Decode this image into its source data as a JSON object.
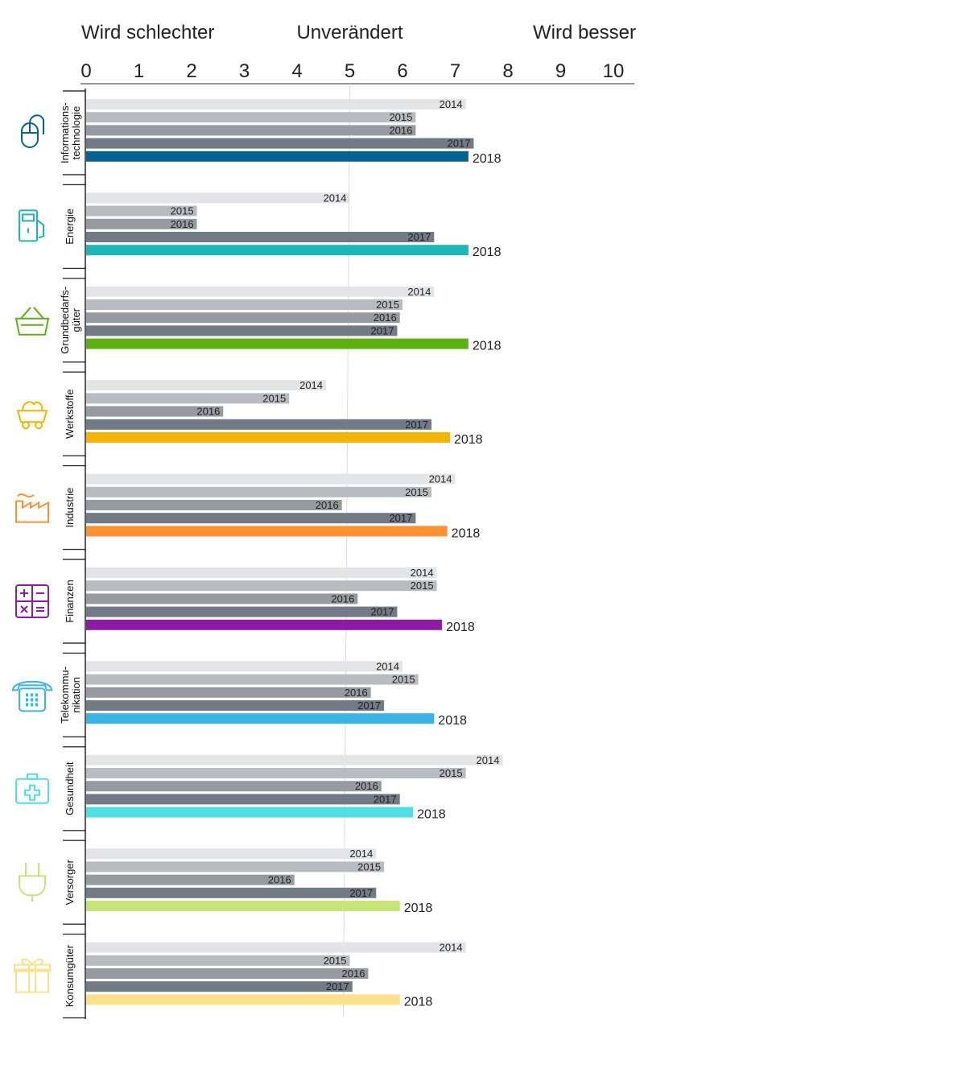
{
  "chart_data": {
    "type": "bar",
    "orientation": "horizontal",
    "zone_labels": [
      "Wird schlechter",
      "Unverändert",
      "Wird besser"
    ],
    "x_ticks": [
      "0",
      "1",
      "2",
      "3",
      "4",
      "5",
      "6",
      "7",
      "8",
      "9",
      "10"
    ],
    "xlim": [
      0,
      10
    ],
    "grid": "single vertical reference line at 5",
    "years": [
      "2014",
      "2015",
      "2016",
      "2017",
      "2018"
    ],
    "year_colors": [
      "#e3e4e6",
      "#b8bcc1",
      "#969ba2",
      "#727a86",
      null
    ],
    "groups": [
      {
        "name": "Informations-\ntechnologie",
        "icon": "computer-mouse-icon",
        "color": "#05628f",
        "values": [
          7.2,
          6.25,
          6.25,
          7.35,
          7.25
        ]
      },
      {
        "name": "Energie",
        "icon": "fuel-pump-icon",
        "color": "#1cb7b6",
        "values": [
          5.0,
          2.1,
          2.1,
          6.6,
          7.25
        ]
      },
      {
        "name": "Grundbedarfs-\ngüter",
        "icon": "shopping-basket-icon",
        "color": "#5bb110",
        "values": [
          6.6,
          6.0,
          5.95,
          5.9,
          7.25
        ]
      },
      {
        "name": "Werkstoffe",
        "icon": "mine-cart-icon",
        "color": "#f3b500",
        "values": [
          4.55,
          3.85,
          2.6,
          6.55,
          6.9
        ]
      },
      {
        "name": "Industrie",
        "icon": "factory-icon",
        "color": "#ff9133",
        "values": [
          7.0,
          6.55,
          4.85,
          6.25,
          6.85
        ]
      },
      {
        "name": "Finanzen",
        "icon": "calculator-icon",
        "color": "#8f1aa3",
        "values": [
          6.65,
          6.65,
          5.15,
          5.9,
          6.75
        ]
      },
      {
        "name": "Telekommu-\nnikation",
        "icon": "telephone-icon",
        "color": "#3bb4e5",
        "values": [
          6.0,
          6.3,
          5.4,
          5.65,
          6.6
        ]
      },
      {
        "name": "Gesundheit",
        "icon": "first-aid-kit-icon",
        "color": "#52dfe3",
        "values": [
          7.9,
          7.2,
          5.6,
          5.95,
          6.2
        ]
      },
      {
        "name": "Versorger",
        "icon": "power-plug-icon",
        "color": "#c5e676",
        "values": [
          5.5,
          5.65,
          3.95,
          5.5,
          5.95
        ]
      },
      {
        "name": "Konsumgüter",
        "icon": "gift-icon",
        "color": "#fce08a",
        "values": [
          7.2,
          5.0,
          5.35,
          5.05,
          5.95
        ]
      }
    ]
  }
}
